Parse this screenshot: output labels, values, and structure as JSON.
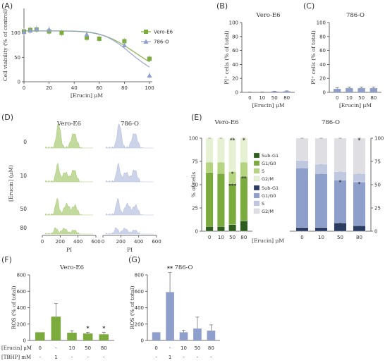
{
  "panel_labels": [
    "(A)",
    "(B)",
    "(C)",
    "(D)",
    "(E)",
    "(F)",
    "(G)"
  ],
  "colors": {
    "vero": "#7aab3c",
    "o786": "#8f9fcc",
    "vero_light": "#b9d48e",
    "o786_light": "#c5cde6"
  },
  "chart_data": [
    {
      "panel": "(A)",
      "type": "scatter",
      "title": "",
      "xlabel": "[Erucin] μM",
      "ylabel": "Cell viability (% of control)",
      "xlim": [
        0,
        100
      ],
      "ylim": [
        0,
        150
      ],
      "xticks": [
        "0",
        "20",
        "40",
        "60",
        "80",
        "100"
      ],
      "yticks": [
        "0",
        "50",
        "100"
      ],
      "legend_position": "top-right",
      "series": [
        {
          "name": "Vero-E6",
          "color": "#7aab3c",
          "marker": "square",
          "x": [
            0,
            5,
            10,
            20,
            30,
            50,
            60,
            80,
            100
          ],
          "y": [
            103,
            106,
            107,
            103,
            100,
            90,
            88,
            83,
            47
          ]
        },
        {
          "name": "786-O",
          "color": "#8f9fcc",
          "marker": "triangle",
          "x": [
            0,
            5,
            10,
            20,
            50,
            80,
            100
          ],
          "y": [
            102,
            105,
            108,
            107,
            97,
            75,
            13
          ]
        }
      ]
    },
    {
      "panel": "(B)",
      "type": "bar",
      "title": "Vero-E6",
      "xlabel": "[Erucin] μM",
      "ylabel": "PI⁺ cells (% of total)",
      "ylim": [
        0,
        100
      ],
      "yticks": [
        "0",
        "20",
        "40",
        "60",
        "80",
        "100"
      ],
      "categories": [
        "0",
        "10",
        "50",
        "80"
      ],
      "values": [
        0.2,
        0.3,
        1.2,
        1.5
      ],
      "errors": [
        0.2,
        0.2,
        0.5,
        0.6
      ]
    },
    {
      "panel": "(C)",
      "type": "bar",
      "title": "786-O",
      "xlabel": "[Erucin] μM",
      "ylabel": "PI⁺ cells (% of total)",
      "ylim": [
        0,
        100
      ],
      "yticks": [
        "0",
        "20",
        "40",
        "60",
        "80",
        "100"
      ],
      "categories": [
        "0",
        "10",
        "50",
        "80"
      ],
      "values": [
        5,
        6,
        6,
        6
      ],
      "errors": [
        1.5,
        1.5,
        1.5,
        1.5
      ]
    },
    {
      "panel": "(D)",
      "type": "area",
      "titles": [
        "Vero-E6",
        "786-O"
      ],
      "ylabel": "[Erucin] (μM)",
      "row_labels": [
        "0",
        "10",
        "50",
        "80"
      ],
      "xlabel": "PI",
      "xticks": [
        "0",
        "200",
        "400",
        "600"
      ]
    },
    {
      "panel": "(E)",
      "type": "bar",
      "stacked": true,
      "titles": [
        "Vero-E6",
        "786-O"
      ],
      "xlabel": "[Erucin] μM",
      "ylabel": "% of cells",
      "ylim": [
        0,
        100
      ],
      "yticks": [
        "0",
        "25",
        "50",
        "75",
        "100"
      ],
      "categories": [
        "0",
        "10",
        "50",
        "80"
      ],
      "groups": [
        {
          "name": "Vero-E6",
          "series": [
            {
              "name": "Sub-G1",
              "color": "#2f5d1d",
              "values": [
                5,
                5,
                7,
                11
              ]
            },
            {
              "name": "G1/G0",
              "color": "#7aab3c",
              "values": [
                58,
                57,
                44,
                48
              ]
            },
            {
              "name": "S",
              "color": "#b5d47f",
              "values": [
                11,
                12,
                13,
                15
              ]
            },
            {
              "name": "G2/M",
              "color": "#e6f0d2",
              "values": [
                26,
                26,
                36,
                26
              ]
            }
          ],
          "annotations": [
            {
              "category": "50",
              "series": "G1/G0",
              "text": "***"
            },
            {
              "category": "80",
              "series": "G1/G0",
              "text": "**"
            },
            {
              "category": "50",
              "series": "S",
              "text": "*"
            },
            {
              "category": "50",
              "series": "G2/M",
              "text": "**"
            },
            {
              "category": "80",
              "series": "G2/M",
              "text": "*"
            }
          ]
        },
        {
          "name": "786-O",
          "series": [
            {
              "name": "Sub-G1",
              "color": "#2b3d63",
              "values": [
                4,
                4,
                9,
                6
              ]
            },
            {
              "name": "G1/G0",
              "color": "#8f9fcc",
              "values": [
                64,
                58,
                46,
                47
              ]
            },
            {
              "name": "S",
              "color": "#c0c8e0",
              "values": [
                8,
                10,
                9,
                9
              ]
            },
            {
              "name": "G2/M",
              "color": "#dfdfe3",
              "values": [
                24,
                28,
                36,
                38
              ]
            }
          ],
          "annotations": [
            {
              "category": "50",
              "series": "Sub-G1",
              "text": "*"
            },
            {
              "category": "50",
              "series": "G1/G0",
              "text": "*"
            },
            {
              "category": "80",
              "series": "G1/G0",
              "text": "*"
            },
            {
              "category": "80",
              "series": "G2/M",
              "text": "*"
            }
          ]
        }
      ]
    },
    {
      "panel": "(F)",
      "type": "bar",
      "title": "Vero-E6",
      "ylabel": "ROS (% of total)",
      "ylim": [
        0,
        800
      ],
      "yticks": [
        "0",
        "200",
        "400",
        "600",
        "800"
      ],
      "row_labels": [
        "[Erucin] μM",
        "[TBHP] mM"
      ],
      "erucin": [
        "0",
        "-",
        "10",
        "50",
        "80"
      ],
      "tbhp": [
        "-",
        "1",
        "-",
        "-",
        "-"
      ],
      "values": [
        100,
        290,
        95,
        85,
        75
      ],
      "errors": [
        0,
        160,
        25,
        15,
        25
      ],
      "stars": [
        "",
        "",
        "",
        "*",
        "*"
      ]
    },
    {
      "panel": "(G)",
      "type": "bar",
      "title": "786-O",
      "ylabel": "ROS (% of total)",
      "ylim": [
        0,
        800
      ],
      "yticks": [
        "0",
        "200",
        "400",
        "600",
        "800"
      ],
      "erucin": [
        "0",
        "-",
        "10",
        "50",
        "80"
      ],
      "tbhp": [
        "-",
        "1",
        "-",
        "-",
        "-"
      ],
      "values": [
        100,
        590,
        100,
        145,
        120
      ],
      "errors": [
        0,
        240,
        25,
        140,
        70
      ],
      "stars": [
        "",
        "**",
        "",
        "",
        ""
      ]
    }
  ]
}
